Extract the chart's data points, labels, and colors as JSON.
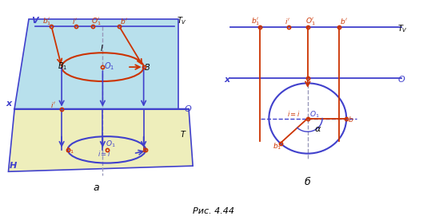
{
  "fig_width": 5.34,
  "fig_height": 2.71,
  "dpi": 100,
  "blue": "#4040cc",
  "red": "#cc3300",
  "orange_red": "#cc4400",
  "gray_dash": "#9999bb",
  "light_blue": "#b8e0ec",
  "light_yellow": "#eeeebb",
  "caption": "Рис. 4.44",
  "label_a": "а",
  "label_b": "б"
}
